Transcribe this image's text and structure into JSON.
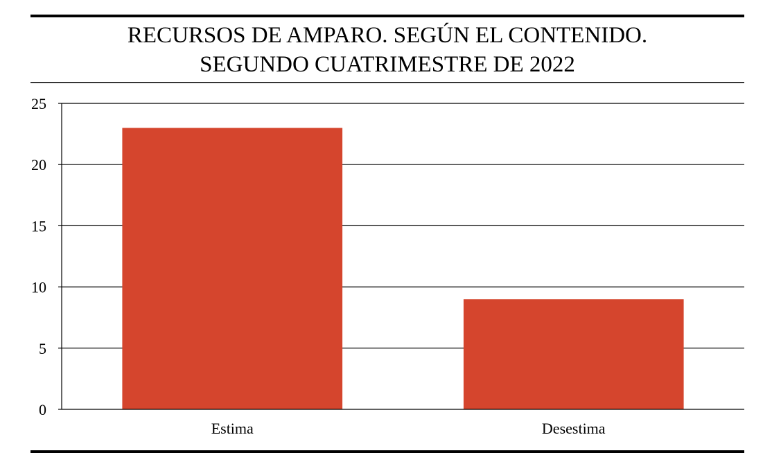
{
  "chart_data": {
    "type": "bar",
    "title_lines": [
      "RECURSOS DE AMPARO. SEGÚN EL CONTENIDO.",
      "SEGUNDO CUATRIMESTRE DE 2022"
    ],
    "categories": [
      "Estima",
      "Desestima"
    ],
    "values": [
      23,
      9
    ],
    "xlabel": "",
    "ylabel": "",
    "ylim": [
      0,
      25
    ],
    "yticks": [
      0,
      5,
      10,
      15,
      20,
      25
    ],
    "grid": true,
    "legend": "none",
    "colors": {
      "bar": "#D5452D",
      "axis": "#000000",
      "gridline": "#000000",
      "rule": "#000000"
    }
  }
}
